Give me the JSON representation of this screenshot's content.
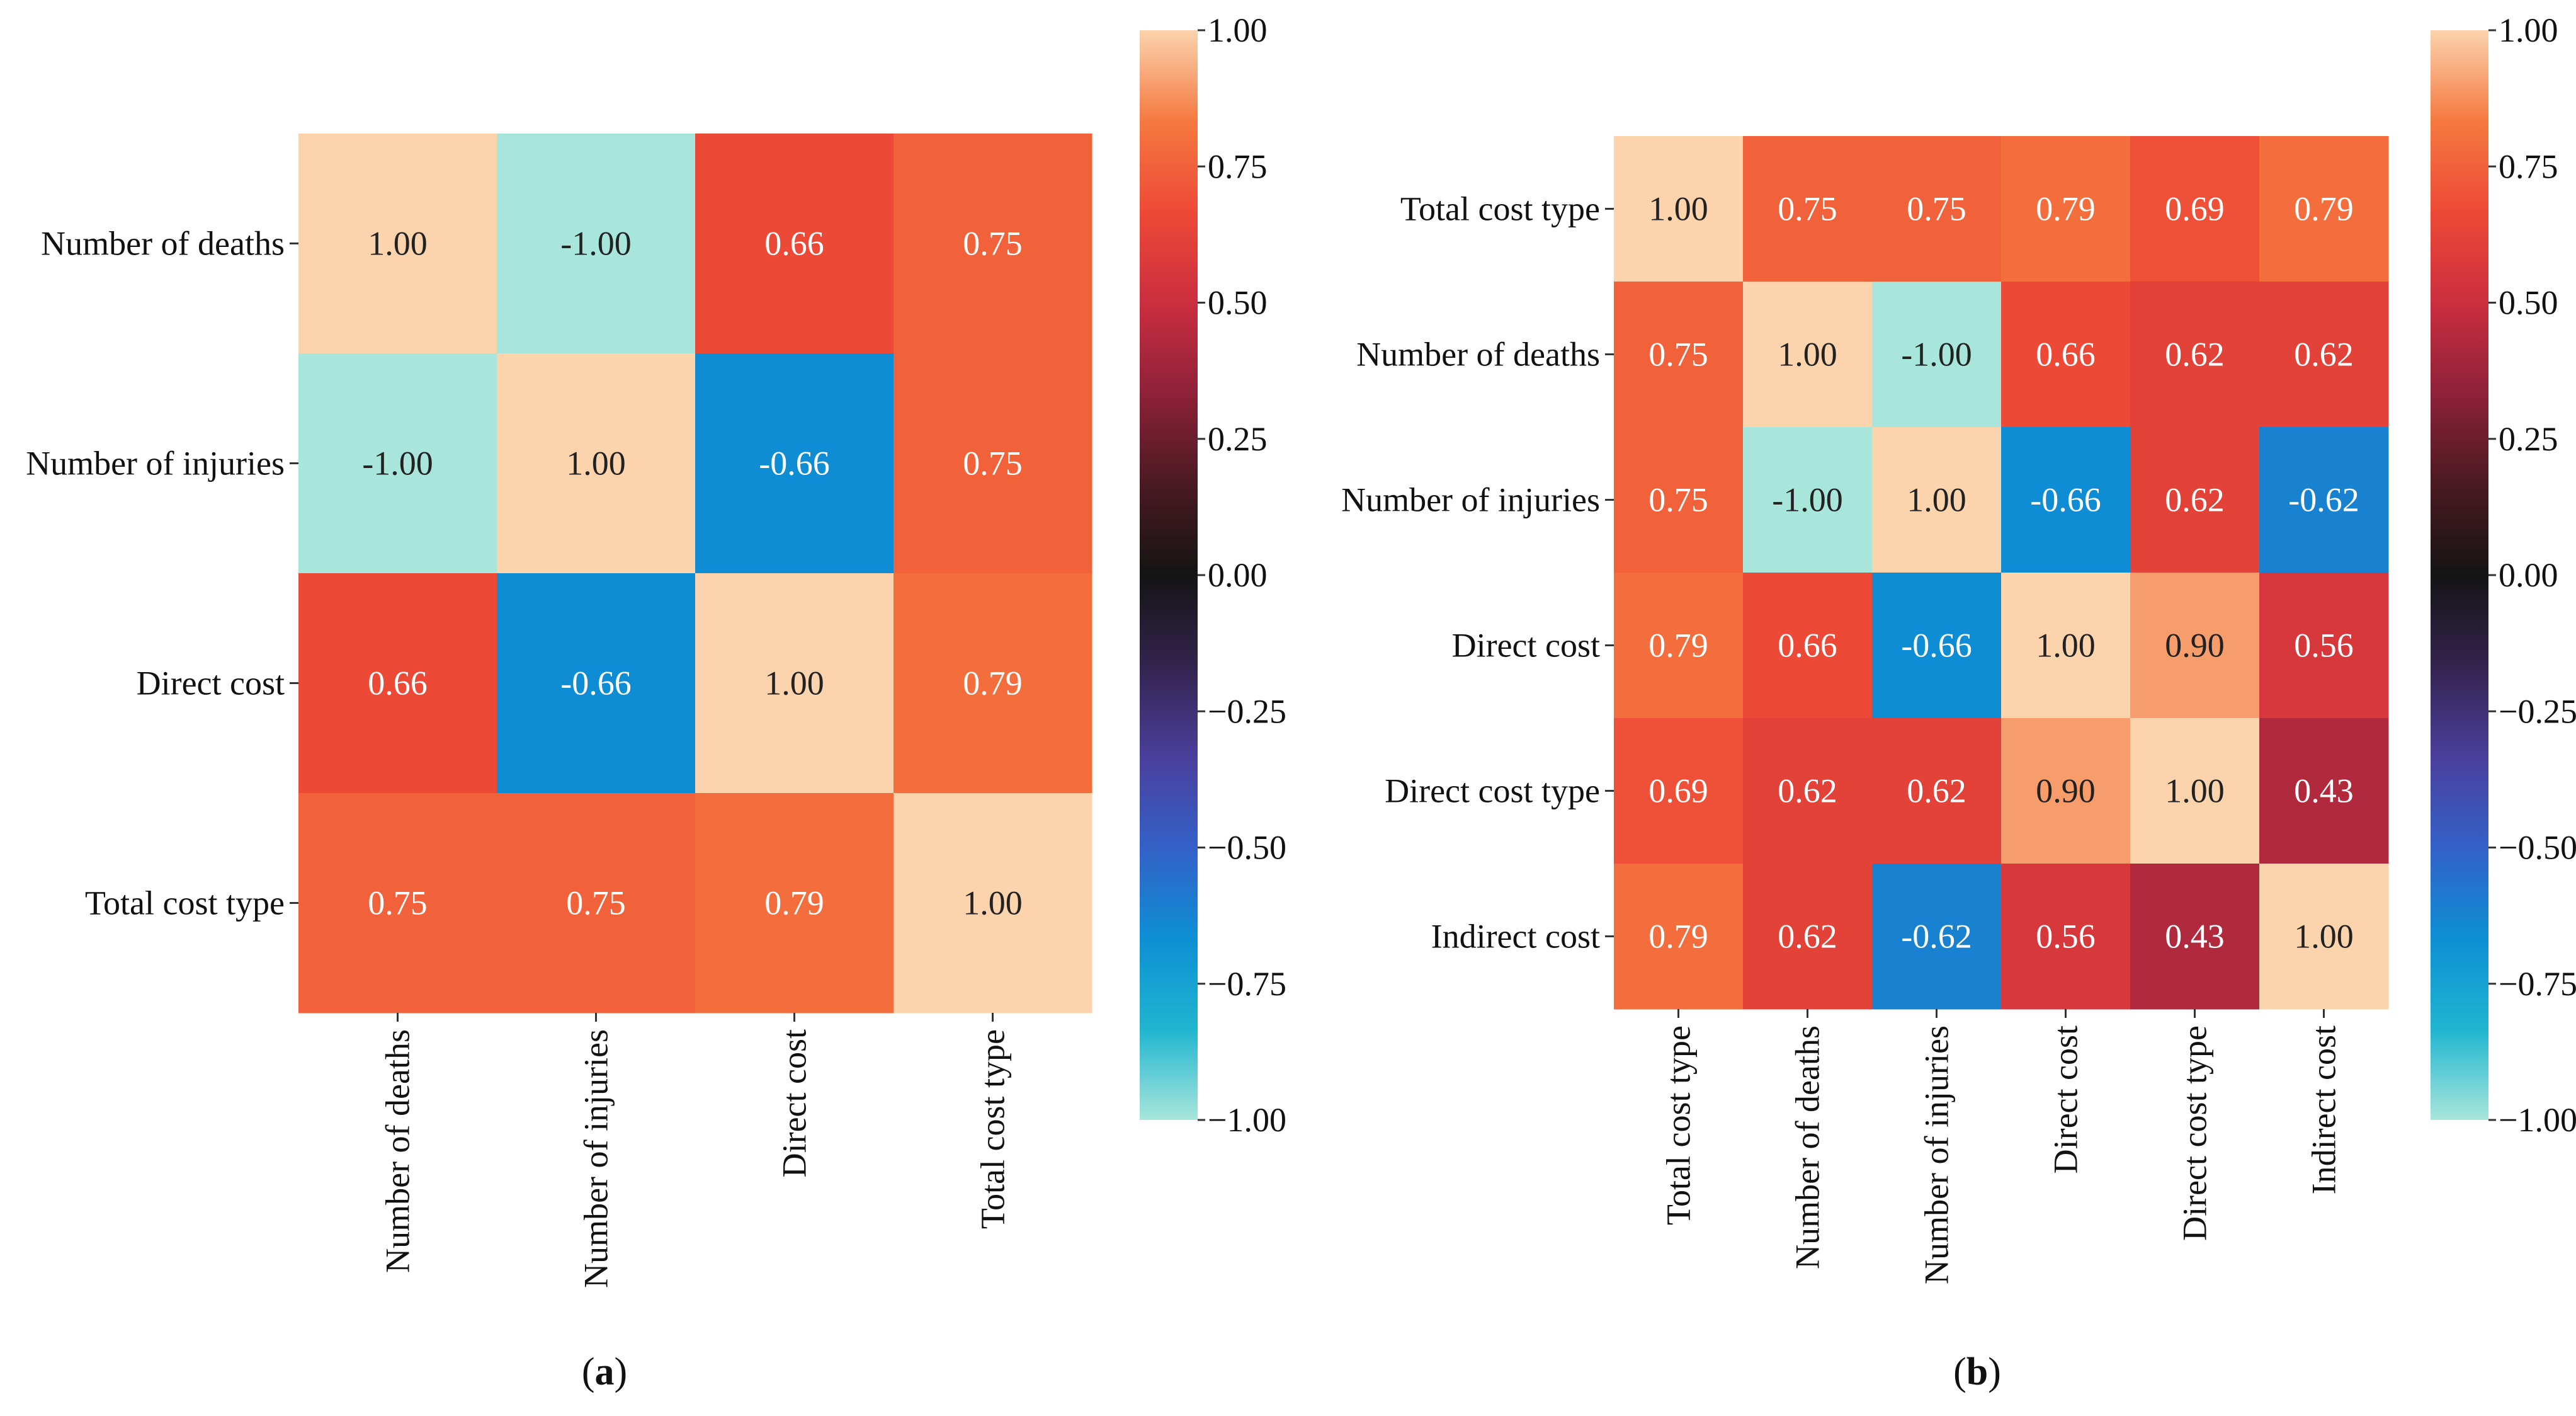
{
  "chart_data": [
    {
      "type": "heatmap",
      "panel_label": "a",
      "rows": [
        "Number of deaths",
        "Number of injuries",
        "Direct cost",
        "Total cost type"
      ],
      "columns": [
        "Number of deaths",
        "Number of injuries",
        "Direct cost",
        "Total cost type"
      ],
      "values": [
        [
          1.0,
          -1.0,
          0.66,
          0.75
        ],
        [
          -1.0,
          1.0,
          -0.66,
          0.75
        ],
        [
          0.66,
          -0.66,
          1.0,
          0.79
        ],
        [
          0.75,
          0.75,
          0.79,
          1.0
        ]
      ],
      "cell_labels": [
        [
          "1.00",
          "-1.00",
          "0.66",
          "0.75"
        ],
        [
          "-1.00",
          "1.00",
          "-0.66",
          "0.75"
        ],
        [
          "0.66",
          "-0.66",
          "1.00",
          "0.79"
        ],
        [
          "0.75",
          "0.75",
          "0.79",
          "1.00"
        ]
      ],
      "colorbar": {
        "range": [
          -1.0,
          1.0
        ],
        "ticks": [
          "1.00",
          "0.75",
          "0.50",
          "0.25",
          "0.00",
          "−0.25",
          "−0.50",
          "−0.75",
          "−1.00"
        ],
        "tick_values": [
          1.0,
          0.75,
          0.5,
          0.25,
          0.0,
          -0.25,
          -0.5,
          -0.75,
          -1.0
        ]
      }
    },
    {
      "type": "heatmap",
      "panel_label": "b",
      "rows": [
        "Total cost type",
        "Number of deaths",
        "Number of injuries",
        "Direct cost",
        "Direct cost type",
        "Indirect cost"
      ],
      "columns": [
        "Total cost type",
        "Number of deaths",
        "Number of injuries",
        "Direct cost",
        "Direct cost type",
        "Indirect cost"
      ],
      "values": [
        [
          1.0,
          0.75,
          0.75,
          0.79,
          0.69,
          0.79
        ],
        [
          0.75,
          1.0,
          -1.0,
          0.66,
          0.62,
          0.62
        ],
        [
          0.75,
          -1.0,
          1.0,
          -0.66,
          0.62,
          -0.62
        ],
        [
          0.79,
          0.66,
          -0.66,
          1.0,
          0.9,
          0.56
        ],
        [
          0.69,
          0.62,
          0.62,
          0.9,
          1.0,
          0.43
        ],
        [
          0.79,
          0.62,
          -0.62,
          0.56,
          0.43,
          1.0
        ]
      ],
      "cell_labels": [
        [
          "1.00",
          "0.75",
          "0.75",
          "0.79",
          "0.69",
          "0.79"
        ],
        [
          "0.75",
          "1.00",
          "-1.00",
          "0.66",
          "0.62",
          "0.62"
        ],
        [
          "0.75",
          "-1.00",
          "1.00",
          "-0.66",
          "0.62",
          "-0.62"
        ],
        [
          "0.79",
          "0.66",
          "-0.66",
          "1.00",
          "0.90",
          "0.56"
        ],
        [
          "0.69",
          "0.62",
          "0.62",
          "0.90",
          "1.00",
          "0.43"
        ],
        [
          "0.79",
          "0.62",
          "-0.62",
          "0.56",
          "0.43",
          "1.00"
        ]
      ],
      "colorbar": {
        "range": [
          -1.0,
          1.0
        ],
        "ticks": [
          "1.00",
          "0.75",
          "0.50",
          "0.25",
          "0.00",
          "−0.25",
          "−0.50",
          "−0.75",
          "−1.00"
        ],
        "tick_values": [
          1.0,
          0.75,
          0.5,
          0.25,
          0.0,
          -0.25,
          -0.5,
          -0.75,
          -1.0
        ]
      }
    }
  ],
  "colormap": [
    "#a8e6db",
    "#1fb5d0",
    "#0d8fd4",
    "#3361c8",
    "#4b3f9c",
    "#33244e",
    "#141414",
    "#4a1a22",
    "#8e2139",
    "#cb2e3f",
    "#ed4a36",
    "#f57940",
    "#fbd3ad"
  ]
}
